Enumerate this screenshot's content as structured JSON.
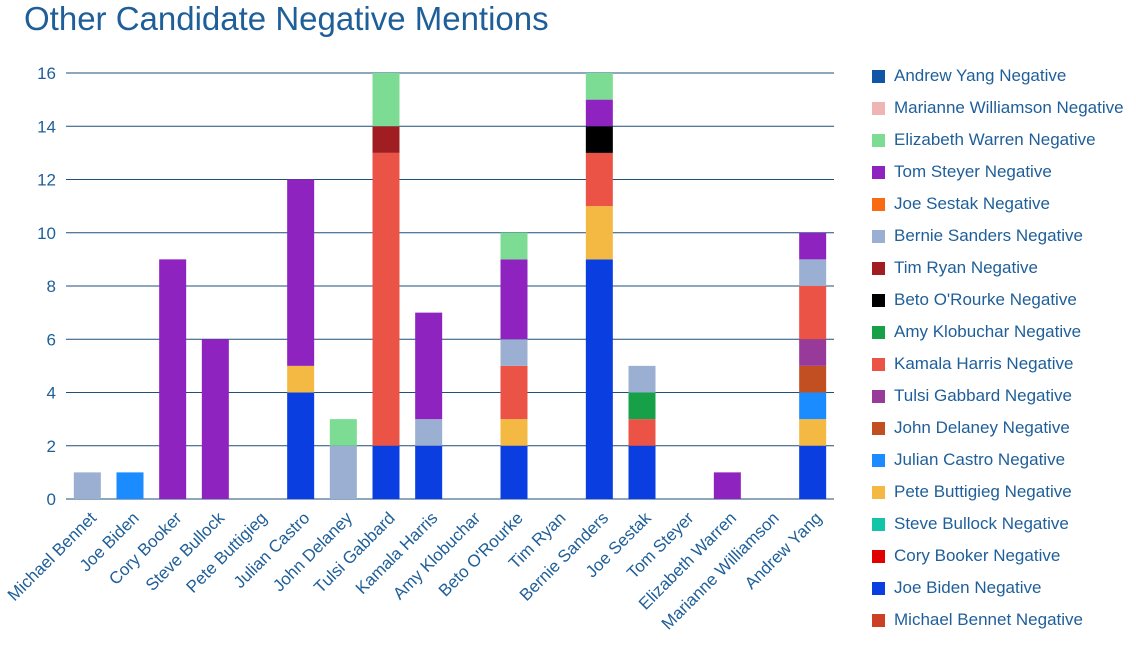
{
  "chart_data": {
    "type": "bar",
    "stacked": true,
    "title": "Other Candidate Negative Mentions",
    "xlabel": "",
    "ylabel": "",
    "ylim": [
      0,
      16
    ],
    "yticks": [
      0,
      2,
      4,
      6,
      8,
      10,
      12,
      14,
      16
    ],
    "grid": true,
    "legend_position": "right",
    "categories": [
      "Michael Bennet",
      "Joe Biden",
      "Cory Booker",
      "Steve Bullock",
      "Pete Buttigieg",
      "Julian Castro",
      "John Delaney",
      "Tulsi Gabbard",
      "Kamala Harris",
      "Amy Klobuchar",
      "Beto O'Rourke",
      "Tim Ryan",
      "Bernie Sanders",
      "Joe Sestak",
      "Tom Steyer",
      "Elizabeth Warren",
      "Marianne Williamson",
      "Andrew Yang"
    ],
    "series": [
      {
        "name": "Michael Bennet Negative",
        "color": "#cc4125",
        "values": [
          0,
          0,
          0,
          0,
          0,
          0,
          0,
          0,
          0,
          0,
          0,
          0,
          0,
          0,
          0,
          0,
          0,
          0
        ]
      },
      {
        "name": "Joe Biden Negative",
        "color": "#0b3ee0",
        "values": [
          0,
          0,
          0,
          0,
          0,
          4,
          0,
          2,
          2,
          0,
          2,
          0,
          9,
          2,
          0,
          0,
          0,
          2
        ]
      },
      {
        "name": "Cory Booker Negative",
        "color": "#e00000",
        "values": [
          0,
          0,
          0,
          0,
          0,
          0,
          0,
          0,
          0,
          0,
          0,
          0,
          0,
          0,
          0,
          0,
          0,
          0
        ]
      },
      {
        "name": "Steve Bullock Negative",
        "color": "#12c4a8",
        "values": [
          0,
          0,
          0,
          0,
          0,
          0,
          0,
          0,
          0,
          0,
          0,
          0,
          0,
          0,
          0,
          0,
          0,
          0
        ]
      },
      {
        "name": "Pete Buttigieg Negative",
        "color": "#f4b942",
        "values": [
          0,
          0,
          0,
          0,
          0,
          1,
          0,
          0,
          0,
          0,
          1,
          0,
          2,
          0,
          0,
          0,
          0,
          1
        ]
      },
      {
        "name": "Julian Castro Negative",
        "color": "#1a8cff",
        "values": [
          0,
          1,
          0,
          0,
          0,
          0,
          0,
          0,
          0,
          0,
          0,
          0,
          0,
          0,
          0,
          0,
          0,
          1
        ]
      },
      {
        "name": "John Delaney Negative",
        "color": "#c24f22",
        "values": [
          0,
          0,
          0,
          0,
          0,
          0,
          0,
          0,
          0,
          0,
          0,
          0,
          0,
          0,
          0,
          0,
          0,
          1
        ]
      },
      {
        "name": "Tulsi Gabbard Negative",
        "color": "#983a9a",
        "values": [
          0,
          0,
          0,
          0,
          0,
          0,
          0,
          0,
          0,
          0,
          0,
          0,
          0,
          0,
          0,
          0,
          0,
          1
        ]
      },
      {
        "name": "Kamala Harris Negative",
        "color": "#ec5347",
        "values": [
          0,
          0,
          0,
          0,
          0,
          0,
          0,
          11,
          0,
          0,
          2,
          0,
          2,
          1,
          0,
          0,
          0,
          2
        ]
      },
      {
        "name": "Amy Klobuchar Negative",
        "color": "#16a048",
        "values": [
          0,
          0,
          0,
          0,
          0,
          0,
          0,
          0,
          0,
          0,
          0,
          0,
          0,
          1,
          0,
          0,
          0,
          0
        ]
      },
      {
        "name": "Beto O'Rourke Negative",
        "color": "#000000",
        "values": [
          0,
          0,
          0,
          0,
          0,
          0,
          0,
          0,
          0,
          0,
          0,
          0,
          1,
          0,
          0,
          0,
          0,
          0
        ]
      },
      {
        "name": "Tim Ryan Negative",
        "color": "#a01d22",
        "values": [
          0,
          0,
          0,
          0,
          0,
          0,
          0,
          1,
          0,
          0,
          0,
          0,
          0,
          0,
          0,
          0,
          0,
          0
        ]
      },
      {
        "name": "Bernie Sanders Negative",
        "color": "#9aafd2",
        "values": [
          1,
          0,
          0,
          0,
          0,
          0,
          2,
          0,
          1,
          0,
          1,
          0,
          0,
          1,
          0,
          0,
          0,
          1
        ]
      },
      {
        "name": "Joe Sestak Negative",
        "color": "#f96b13",
        "values": [
          0,
          0,
          0,
          0,
          0,
          0,
          0,
          0,
          0,
          0,
          0,
          0,
          0,
          0,
          0,
          0,
          0,
          0
        ]
      },
      {
        "name": "Tom Steyer Negative",
        "color": "#8e23c0",
        "values": [
          0,
          0,
          9,
          6,
          0,
          7,
          0,
          0,
          4,
          0,
          3,
          0,
          1,
          0,
          0,
          1,
          0,
          1
        ]
      },
      {
        "name": "Elizabeth Warren Negative",
        "color": "#7ddc93",
        "values": [
          0,
          0,
          0,
          0,
          0,
          0,
          1,
          2,
          0,
          0,
          1,
          0,
          1,
          0,
          0,
          0,
          0,
          0
        ]
      },
      {
        "name": "Marianne Williamson Negative",
        "color": "#efb5b5",
        "values": [
          0,
          0,
          0,
          0,
          0,
          0,
          0,
          0,
          0,
          0,
          0,
          0,
          0,
          0,
          0,
          0,
          0,
          0
        ]
      },
      {
        "name": "Andrew Yang Negative",
        "color": "#1155a6",
        "values": [
          0,
          0,
          0,
          0,
          0,
          0,
          0,
          0,
          0,
          0,
          0,
          0,
          0,
          0,
          0,
          0,
          0,
          0
        ]
      }
    ]
  }
}
